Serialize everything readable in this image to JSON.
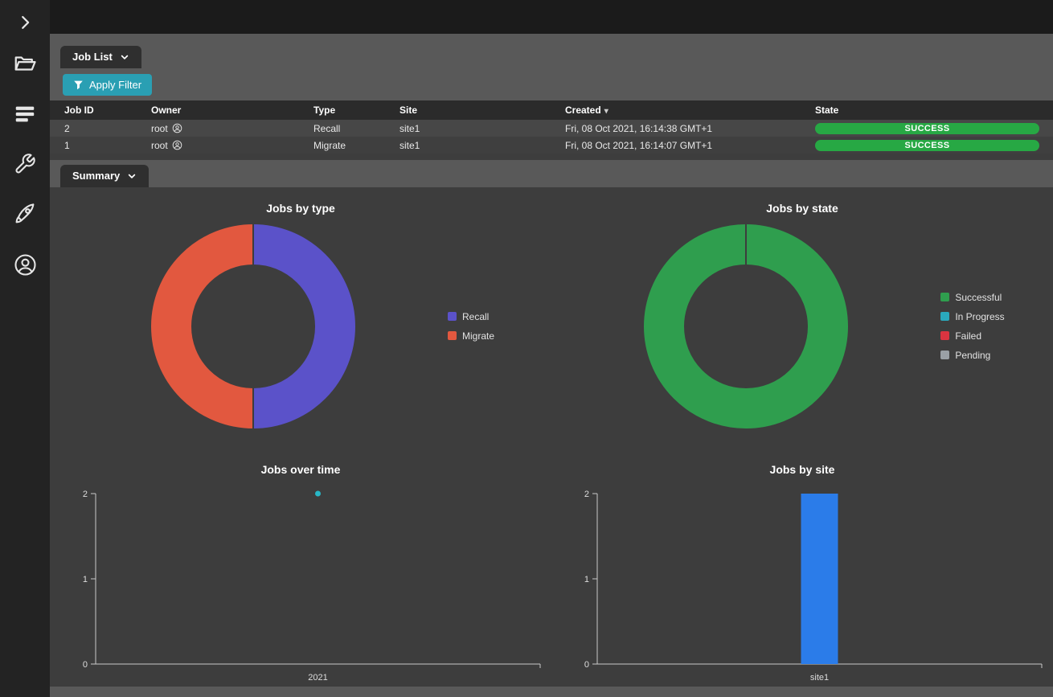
{
  "app": {
    "colors": {
      "accent_teal": "#2a9fb3",
      "success_green": "#27a844",
      "panel_dark": "#3d3d3d",
      "band_gray": "#595959"
    }
  },
  "sidebar": {
    "items": [
      {
        "icon": "chevron-right-icon"
      },
      {
        "icon": "folder-icon"
      },
      {
        "icon": "jobs-queue-icon"
      },
      {
        "icon": "wrench-icon"
      },
      {
        "icon": "rocket-icon"
      },
      {
        "icon": "account-icon"
      }
    ]
  },
  "job_list": {
    "tab_label": "Job List",
    "filter_button_label": "Apply Filter",
    "table": {
      "columns": [
        "Job ID",
        "Owner",
        "Type",
        "Site",
        "Created",
        "State"
      ],
      "sort_column": "Created",
      "rows": [
        {
          "job_id": "2",
          "owner": "root",
          "type": "Recall",
          "site": "site1",
          "created": "Fri, 08 Oct 2021, 16:14:38 GMT+1",
          "state": "SUCCESS"
        },
        {
          "job_id": "1",
          "owner": "root",
          "type": "Migrate",
          "site": "site1",
          "created": "Fri, 08 Oct 2021, 16:14:07 GMT+1",
          "state": "SUCCESS"
        }
      ]
    }
  },
  "summary": {
    "tab_label": "Summary"
  },
  "chart_data": [
    {
      "type": "pie",
      "title": "Jobs by type",
      "labels": [
        "Recall",
        "Migrate"
      ],
      "values": [
        1,
        1
      ],
      "colors": [
        "#5b52c9",
        "#e2583f"
      ],
      "donut": true,
      "legend_position": "right"
    },
    {
      "type": "pie",
      "title": "Jobs by state",
      "labels": [
        "Successful",
        "In Progress",
        "Failed",
        "Pending"
      ],
      "values": [
        2,
        0,
        0,
        0
      ],
      "colors": [
        "#2f9e4e",
        "#2aa9bd",
        "#d93440",
        "#9aa0a6"
      ],
      "donut": true,
      "legend_position": "right"
    },
    {
      "type": "scatter",
      "title": "Jobs over time",
      "x_labels": [
        "2021"
      ],
      "values": [
        2
      ],
      "ylim": [
        0,
        2
      ],
      "yticks": [
        0,
        1,
        2
      ],
      "point_color": "#28b7c7",
      "grid": false
    },
    {
      "type": "bar",
      "title": "Jobs by site",
      "categories": [
        "site1"
      ],
      "values": [
        2
      ],
      "ylim": [
        0,
        2
      ],
      "yticks": [
        0,
        1,
        2
      ],
      "bar_color": "#2b7ce9",
      "grid": false
    }
  ]
}
